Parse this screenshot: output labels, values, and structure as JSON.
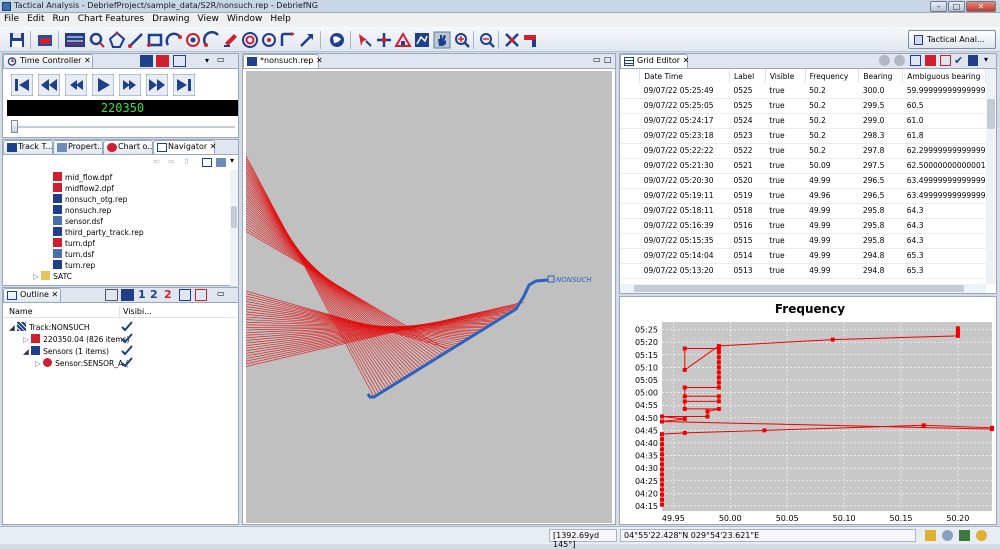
{
  "window": {
    "title": "Tactical Analysis - DebriefProject/sample_data/S2R/nonsuch.rep - DebriefNG"
  },
  "menu": [
    "File",
    "Edit",
    "Run",
    "Chart Features",
    "Drawing",
    "View",
    "Window",
    "Help"
  ],
  "perspective": {
    "label": "Tactical Anal..."
  },
  "time_controller": {
    "tab": "Time Controller",
    "time": "220350"
  },
  "navigator": {
    "tabs": [
      "Track T...",
      "Propert...",
      "Chart o...",
      "Navigator"
    ],
    "files": [
      "mid_flow.dpf",
      "midflow2.dpf",
      "nonsuch_otg.rep",
      "nonsuch.rep",
      "sensor.dsf",
      "third_party_track.rep",
      "turn.dpf",
      "turn.dsf",
      "turn.rep"
    ],
    "folder": "SATC"
  },
  "outline": {
    "tab": "Outline",
    "columns": [
      "Name",
      "Visibi..."
    ],
    "buttons": [
      "1",
      "2",
      "2"
    ],
    "rows": [
      {
        "label": "Track:NONSUCH"
      },
      {
        "label": "220350.04 (826 items)"
      },
      {
        "label": "Sensors (1 items)"
      },
      {
        "label": "Sensor:SENSOR_A ("
      }
    ]
  },
  "editor": {
    "tab": "*nonsuch.rep",
    "track_label": "NONSUCH"
  },
  "grid_editor": {
    "tab": "Grid Editor",
    "columns": [
      "Date Time",
      "Label",
      "Visible",
      "Frequency",
      "Bearing",
      "Ambiguous bearing"
    ],
    "rows": [
      [
        "09/07/22 05:25:49",
        "0525",
        "true",
        "50.2",
        "300.0",
        "59.99999999999999"
      ],
      [
        "09/07/22 05:25:05",
        "0525",
        "true",
        "50.2",
        "299.5",
        "60.5"
      ],
      [
        "09/07/22 05:24:17",
        "0524",
        "true",
        "50.2",
        "299.0",
        "61.0"
      ],
      [
        "09/07/22 05:23:18",
        "0523",
        "true",
        "50.2",
        "298.3",
        "61.8"
      ],
      [
        "09/07/22 05:22:22",
        "0522",
        "true",
        "50.2",
        "297.8",
        "62.29999999999999"
      ],
      [
        "09/07/22 05:21:30",
        "0521",
        "true",
        "50.09",
        "297.5",
        "62.50000000000001"
      ],
      [
        "09/07/22 05:20:30",
        "0520",
        "true",
        "49.99",
        "296.5",
        "63.49999999999999"
      ],
      [
        "09/07/22 05:19:11",
        "0519",
        "true",
        "49.96",
        "296.5",
        "63.49999999999999"
      ],
      [
        "09/07/22 05:18:11",
        "0518",
        "true",
        "49.99",
        "295.8",
        "64.3"
      ],
      [
        "09/07/22 05:16:39",
        "0516",
        "true",
        "49.99",
        "295.8",
        "64.3"
      ],
      [
        "09/07/22 05:15:35",
        "0515",
        "true",
        "49.99",
        "295.8",
        "64.3"
      ],
      [
        "09/07/22 05:14:04",
        "0514",
        "true",
        "49.99",
        "294.8",
        "65.3"
      ],
      [
        "09/07/22 05:13:20",
        "0513",
        "true",
        "49.99",
        "294.8",
        "65.3"
      ]
    ]
  },
  "chart_data": {
    "type": "line",
    "title": "Frequency",
    "xlabel": "",
    "ylabel": "",
    "x_ticks": [
      "49.95",
      "50.00",
      "50.05",
      "50.10",
      "50.15",
      "50.20"
    ],
    "y_ticks": [
      "04:15",
      "04:20",
      "04:25",
      "04:30",
      "04:35",
      "04:40",
      "04:45",
      "04:50",
      "04:55",
      "05:00",
      "05:05",
      "05:10",
      "05:15",
      "05:20",
      "05:25"
    ],
    "xlim": [
      49.94,
      50.23
    ],
    "ylim_minutes": [
      253,
      328
    ],
    "grid": true,
    "series_color": "#ee0000",
    "points": [
      {
        "x": 49.94,
        "y": 255.5
      },
      {
        "x": 49.94,
        "y": 257.5
      },
      {
        "x": 49.94,
        "y": 259.5
      },
      {
        "x": 49.94,
        "y": 261.5
      },
      {
        "x": 49.94,
        "y": 263.5
      },
      {
        "x": 49.94,
        "y": 265.5
      },
      {
        "x": 49.94,
        "y": 267.5
      },
      {
        "x": 49.94,
        "y": 269.5
      },
      {
        "x": 49.94,
        "y": 271.5
      },
      {
        "x": 49.94,
        "y": 273.5
      },
      {
        "x": 49.94,
        "y": 275.5
      },
      {
        "x": 49.94,
        "y": 277.5
      },
      {
        "x": 49.94,
        "y": 279.5
      },
      {
        "x": 49.94,
        "y": 281.5
      },
      {
        "x": 49.94,
        "y": 283.5
      },
      {
        "x": 49.96,
        "y": 284
      },
      {
        "x": 50.03,
        "y": 285
      },
      {
        "x": 50.17,
        "y": 287
      },
      {
        "x": 50.23,
        "y": 286
      },
      {
        "x": 50.23,
        "y": 285.5
      },
      {
        "x": 49.94,
        "y": 288.5
      },
      {
        "x": 49.96,
        "y": 289.5
      },
      {
        "x": 49.94,
        "y": 290.5
      },
      {
        "x": 49.98,
        "y": 290.5
      },
      {
        "x": 49.98,
        "y": 292.5
      },
      {
        "x": 49.99,
        "y": 293.5
      },
      {
        "x": 49.96,
        "y": 293.5
      },
      {
        "x": 49.96,
        "y": 296.5
      },
      {
        "x": 49.99,
        "y": 296.5
      },
      {
        "x": 49.99,
        "y": 298.5
      },
      {
        "x": 49.96,
        "y": 298.5
      },
      {
        "x": 49.96,
        "y": 302
      },
      {
        "x": 49.99,
        "y": 302
      },
      {
        "x": 49.99,
        "y": 304
      },
      {
        "x": 49.99,
        "y": 306
      },
      {
        "x": 49.99,
        "y": 308
      },
      {
        "x": 49.99,
        "y": 310
      },
      {
        "x": 49.99,
        "y": 312
      },
      {
        "x": 49.99,
        "y": 314
      },
      {
        "x": 49.99,
        "y": 316
      },
      {
        "x": 49.99,
        "y": 317.5
      },
      {
        "x": 49.96,
        "y": 317.5
      },
      {
        "x": 49.96,
        "y": 309
      },
      {
        "x": 49.99,
        "y": 318.5
      },
      {
        "x": 50.09,
        "y": 321
      },
      {
        "x": 50.2,
        "y": 322.5
      },
      {
        "x": 50.2,
        "y": 323.5
      },
      {
        "x": 50.2,
        "y": 324.5
      },
      {
        "x": 50.2,
        "y": 325.5
      }
    ]
  },
  "status": {
    "range_bearing": "[1392.69yd 145°]",
    "position": "04°55'22.428\"N 029°54'23.621\"E"
  }
}
